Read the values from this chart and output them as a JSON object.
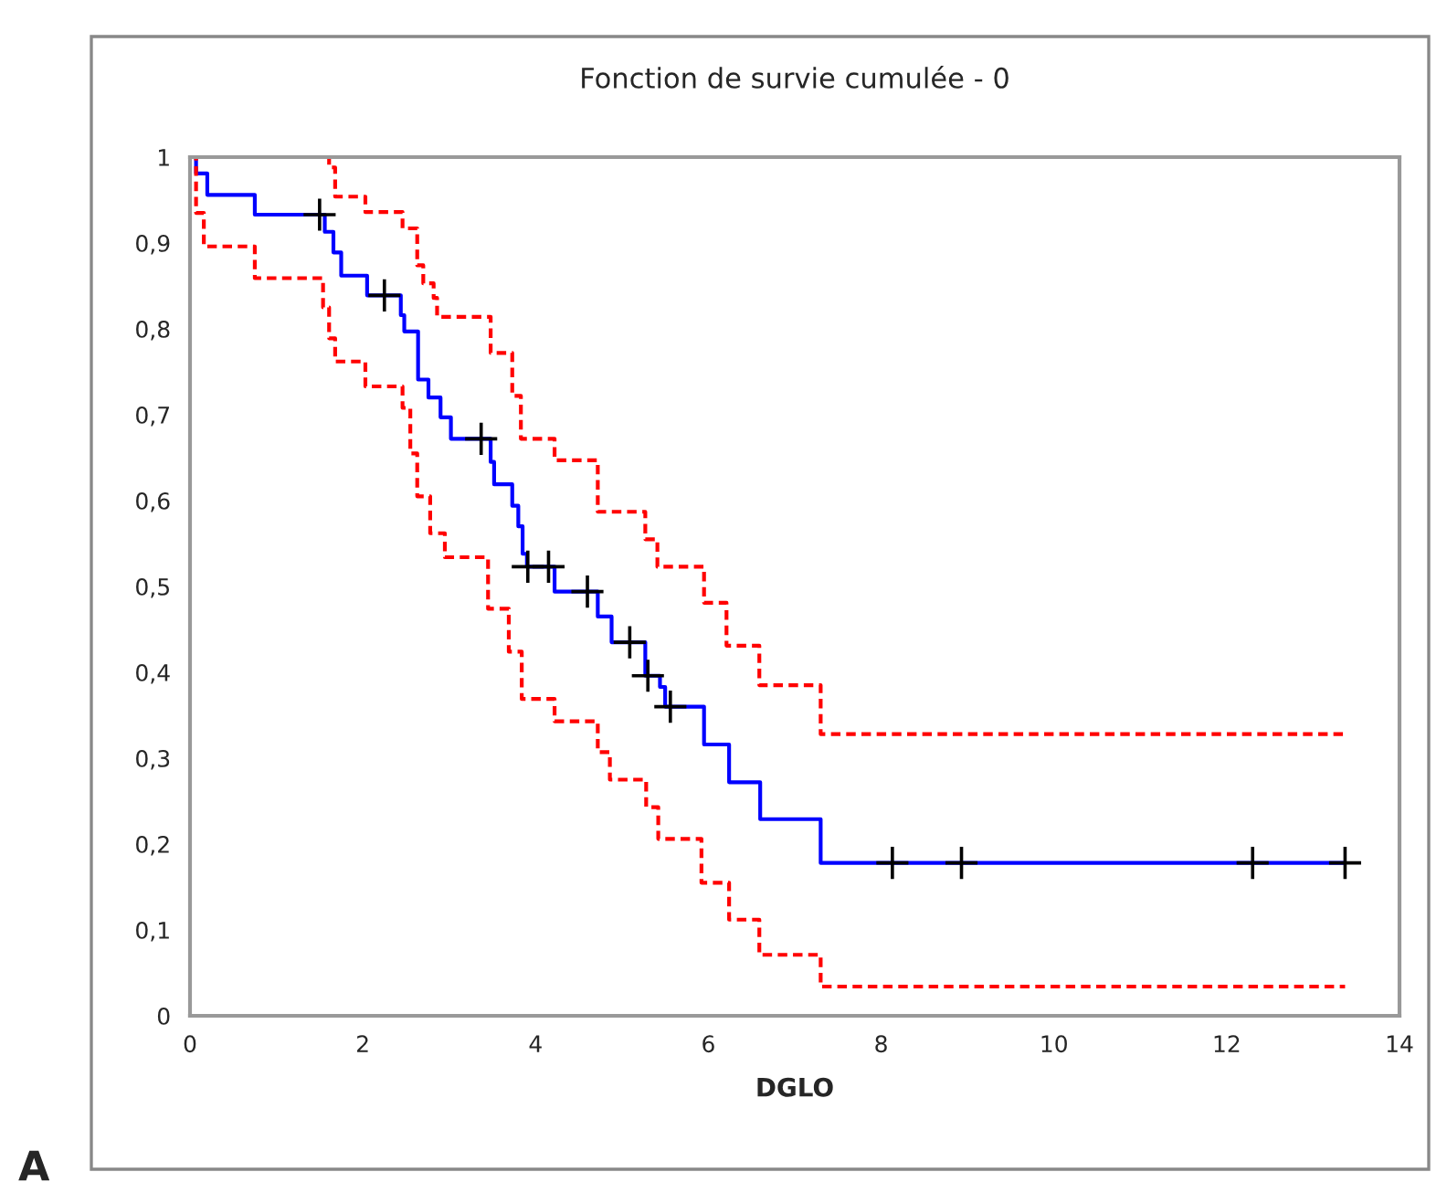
{
  "chart_data": {
    "type": "step",
    "title": "Fonction de survie cumulée - 0",
    "xlabel": "DGLO",
    "annotations": [
      "A"
    ],
    "xlim": [
      0,
      14
    ],
    "xticks": [
      0,
      2,
      4,
      6,
      8,
      10,
      12,
      14
    ],
    "ylim": [
      0,
      1
    ],
    "yticks": [
      0,
      {
        "value": 0.1,
        "label": "0,1"
      },
      {
        "value": 0.2,
        "label": "0,2"
      },
      {
        "value": 0.3,
        "label": "0,3"
      },
      {
        "value": 0.4,
        "label": "0,4"
      },
      {
        "value": 0.5,
        "label": "0,5"
      },
      {
        "value": 0.6,
        "label": "0,6"
      },
      {
        "value": 0.7,
        "label": "0,7"
      },
      {
        "value": 0.8,
        "label": "0,8"
      },
      {
        "value": 0.9,
        "label": "0,9"
      },
      1
    ],
    "grid": false,
    "legend": false,
    "series": [
      {
        "color": "#0000ff",
        "line_style": "solid",
        "x": [
          0,
          0.07,
          0.2,
          0.75,
          1.56,
          1.66,
          1.75,
          2.05,
          2.44,
          2.48,
          2.64,
          2.76,
          2.9,
          3.02,
          3.48,
          3.52,
          3.73,
          3.8,
          3.85,
          3.9,
          4.22,
          4.72,
          4.88,
          5.27,
          5.44,
          5.5,
          5.95,
          6.24,
          6.6,
          7.3,
          13.37
        ],
        "values": [
          1,
          0.981,
          0.956,
          0.933,
          0.913,
          0.889,
          0.862,
          0.839,
          0.816,
          0.797,
          0.741,
          0.72,
          0.697,
          0.672,
          0.645,
          0.619,
          0.594,
          0.57,
          0.538,
          0.523,
          0.494,
          0.465,
          0.435,
          0.396,
          0.383,
          0.36,
          0.316,
          0.272,
          0.229,
          0.178,
          0.178
        ]
      },
      {
        "color": "#ff0000",
        "line_style": "dashed",
        "x": [
          0,
          1.61,
          1.68,
          2.03,
          2.46,
          2.63,
          2.7,
          2.82,
          2.86,
          3.48,
          3.73,
          3.83,
          4.22,
          4.72,
          5.27,
          5.41,
          5.95,
          6.21,
          6.59,
          7.3,
          13.37
        ],
        "values": [
          1,
          0.988,
          0.954,
          0.936,
          0.917,
          0.874,
          0.853,
          0.836,
          0.814,
          0.772,
          0.722,
          0.672,
          0.647,
          0.587,
          0.555,
          0.523,
          0.481,
          0.431,
          0.385,
          0.328,
          0.328
        ]
      },
      {
        "color": "#ff0000",
        "line_style": "dashed",
        "x": [
          0,
          0.07,
          0.16,
          0.75,
          1.54,
          1.61,
          1.68,
          2.03,
          2.46,
          2.55,
          2.63,
          2.78,
          2.95,
          3.45,
          3.69,
          3.84,
          4.22,
          4.72,
          4.86,
          5.28,
          5.42,
          5.92,
          6.24,
          6.59,
          7.3,
          13.37
        ],
        "values": [
          1,
          0.935,
          0.896,
          0.859,
          0.825,
          0.789,
          0.762,
          0.733,
          0.708,
          0.655,
          0.605,
          0.562,
          0.534,
          0.474,
          0.424,
          0.369,
          0.343,
          0.307,
          0.275,
          0.243,
          0.206,
          0.155,
          0.112,
          0.071,
          0.034,
          0.034
        ]
      },
      {
        "type": "scatter",
        "marker": "cross",
        "color": "#000000",
        "x": [
          1.5,
          2.25,
          3.37,
          3.91,
          4.15,
          4.6,
          5.09,
          5.3,
          5.56,
          8.13,
          8.93,
          12.3,
          13.37
        ],
        "values": [
          0.933,
          0.839,
          0.672,
          0.523,
          0.523,
          0.494,
          0.435,
          0.396,
          0.36,
          0.178,
          0.178,
          0.178,
          0.178
        ]
      }
    ]
  }
}
